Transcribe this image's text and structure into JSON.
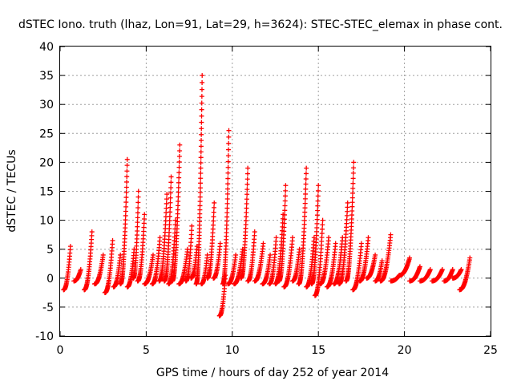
{
  "chart_data": {
    "type": "scatter",
    "title": "dSTEC Iono. truth (lhaz, Lon=91, Lat=29, h=3624): STEC-STEC_elemax in phase cont.",
    "xlabel": "GPS time / hours of day 252 of year 2014",
    "ylabel": "dSTEC  / TECUs",
    "xlim": [
      0,
      25
    ],
    "ylim": [
      -10,
      40
    ],
    "xticks": [
      0,
      5,
      10,
      15,
      20,
      25
    ],
    "yticks": [
      -10,
      -5,
      0,
      5,
      10,
      15,
      20,
      25,
      30,
      35,
      40
    ],
    "grid": true,
    "marker": "plus",
    "colors": {
      "series": "#ff0000",
      "grid": "#a0a0a0",
      "axis": "#000000"
    },
    "arcs": [
      {
        "t0": 0.2,
        "t1": 0.6,
        "min": -2,
        "peak": 5.5
      },
      {
        "t0": 0.8,
        "t1": 1.2,
        "min": -0.5,
        "peak": 1.5
      },
      {
        "t0": 1.4,
        "t1": 1.85,
        "min": -2,
        "peak": 8
      },
      {
        "t0": 2.0,
        "t1": 2.5,
        "min": -1,
        "peak": 4
      },
      {
        "t0": 2.6,
        "t1": 3.05,
        "min": -2.5,
        "peak": 6.5
      },
      {
        "t0": 3.1,
        "t1": 3.5,
        "min": -1.5,
        "peak": 4
      },
      {
        "t0": 3.5,
        "t1": 3.9,
        "min": -1,
        "peak": 20.5
      },
      {
        "t0": 3.9,
        "t1": 4.3,
        "min": -1.5,
        "peak": 5
      },
      {
        "t0": 4.25,
        "t1": 4.55,
        "min": 0,
        "peak": 15
      },
      {
        "t0": 4.5,
        "t1": 4.9,
        "min": -0.5,
        "peak": 11
      },
      {
        "t0": 4.9,
        "t1": 5.4,
        "min": -1,
        "peak": 4
      },
      {
        "t0": 5.35,
        "t1": 5.8,
        "min": -1,
        "peak": 7
      },
      {
        "t0": 5.75,
        "t1": 6.2,
        "min": -0.5,
        "peak": 14.5
      },
      {
        "t0": 6.05,
        "t1": 6.45,
        "min": -0.5,
        "peak": 17.5
      },
      {
        "t0": 6.3,
        "t1": 6.7,
        "min": -1,
        "peak": 10
      },
      {
        "t0": 6.5,
        "t1": 6.95,
        "min": -0.5,
        "peak": 23
      },
      {
        "t0": 6.9,
        "t1": 7.4,
        "min": -1,
        "peak": 5
      },
      {
        "t0": 7.3,
        "t1": 7.65,
        "min": -0.5,
        "peak": 9
      },
      {
        "t0": 7.6,
        "t1": 7.95,
        "min": 0,
        "peak": 5.5
      },
      {
        "t0": 7.9,
        "t1": 8.25,
        "min": -1,
        "peak": 35
      },
      {
        "t0": 8.2,
        "t1": 8.55,
        "min": -1,
        "peak": 4
      },
      {
        "t0": 8.55,
        "t1": 8.95,
        "min": 0,
        "peak": 13
      },
      {
        "t0": 8.9,
        "t1": 9.3,
        "min": 0,
        "peak": 6
      },
      {
        "t0": 9.25,
        "t1": 9.6,
        "min": -6.5,
        "peak": 0.5
      },
      {
        "t0": 9.45,
        "t1": 9.8,
        "min": -1,
        "peak": 25.5
      },
      {
        "t0": 9.75,
        "t1": 10.2,
        "min": -1,
        "peak": 4
      },
      {
        "t0": 10.1,
        "t1": 10.6,
        "min": -1,
        "peak": 5
      },
      {
        "t0": 10.5,
        "t1": 10.9,
        "min": 0,
        "peak": 19
      },
      {
        "t0": 10.9,
        "t1": 11.3,
        "min": -0.5,
        "peak": 8
      },
      {
        "t0": 11.3,
        "t1": 11.8,
        "min": -0.5,
        "peak": 6
      },
      {
        "t0": 11.75,
        "t1": 12.2,
        "min": -1,
        "peak": 4
      },
      {
        "t0": 12.15,
        "t1": 12.55,
        "min": -1,
        "peak": 7
      },
      {
        "t0": 12.5,
        "t1": 12.95,
        "min": -1,
        "peak": 11
      },
      {
        "t0": 12.7,
        "t1": 13.1,
        "min": -0.5,
        "peak": 16
      },
      {
        "t0": 13.0,
        "t1": 13.5,
        "min": -1.5,
        "peak": 7
      },
      {
        "t0": 13.5,
        "t1": 13.9,
        "min": -0.5,
        "peak": 5
      },
      {
        "t0": 13.85,
        "t1": 14.3,
        "min": -1,
        "peak": 19
      },
      {
        "t0": 14.3,
        "t1": 14.75,
        "min": -1.5,
        "peak": 7
      },
      {
        "t0": 14.6,
        "t1": 15.0,
        "min": -1,
        "peak": 16
      },
      {
        "t0": 14.8,
        "t1": 15.25,
        "min": -3,
        "peak": 10
      },
      {
        "t0": 15.1,
        "t1": 15.6,
        "min": -1,
        "peak": 7
      },
      {
        "t0": 15.5,
        "t1": 16.0,
        "min": -1.5,
        "peak": 6
      },
      {
        "t0": 15.9,
        "t1": 16.4,
        "min": -1,
        "peak": 7
      },
      {
        "t0": 16.2,
        "t1": 16.7,
        "min": -1,
        "peak": 13
      },
      {
        "t0": 16.6,
        "t1": 17.05,
        "min": -0.5,
        "peak": 20
      },
      {
        "t0": 17.0,
        "t1": 17.5,
        "min": -2,
        "peak": 6
      },
      {
        "t0": 17.4,
        "t1": 17.9,
        "min": -0.5,
        "peak": 7
      },
      {
        "t0": 17.8,
        "t1": 18.3,
        "min": 0,
        "peak": 4
      },
      {
        "t0": 18.3,
        "t1": 18.7,
        "min": -0.5,
        "peak": 3
      },
      {
        "t0": 18.6,
        "t1": 19.2,
        "min": -0.5,
        "peak": 7.5
      },
      {
        "t0": 19.2,
        "t1": 19.7,
        "min": -0.5,
        "peak": 0.5
      },
      {
        "t0": 19.7,
        "t1": 20.3,
        "min": 0.5,
        "peak": 3.5
      },
      {
        "t0": 20.3,
        "t1": 20.9,
        "min": -0.5,
        "peak": 2
      },
      {
        "t0": 20.9,
        "t1": 21.5,
        "min": -0.5,
        "peak": 1.5
      },
      {
        "t0": 21.6,
        "t1": 22.2,
        "min": -0.5,
        "peak": 1.5
      },
      {
        "t0": 22.3,
        "t1": 22.8,
        "min": -0.5,
        "peak": 1.5
      },
      {
        "t0": 22.8,
        "t1": 23.3,
        "min": 0,
        "peak": 1.5
      },
      {
        "t0": 23.2,
        "t1": 23.8,
        "min": -2,
        "peak": 3.5
      }
    ]
  }
}
